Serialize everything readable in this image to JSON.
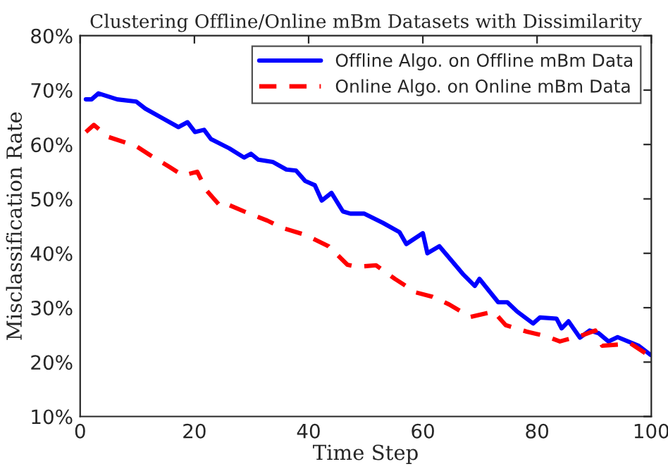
{
  "chart_data": {
    "type": "line",
    "title": "Clustering Offline/Online mBm Datasets with Dissimilarity",
    "xlabel": "Time Step",
    "ylabel": "Misclassification Rate",
    "xlim": [
      0,
      100
    ],
    "xticks": [
      0,
      20,
      40,
      60,
      80,
      100
    ],
    "ylim": [
      10,
      80
    ],
    "yticks": [
      {
        "value": 10,
        "label": "10%"
      },
      {
        "value": 20,
        "label": "20%"
      },
      {
        "value": 30,
        "label": "30%"
      },
      {
        "value": 40,
        "label": "40%"
      },
      {
        "value": 50,
        "label": "50%"
      },
      {
        "value": 60,
        "label": "60%"
      },
      {
        "value": 70,
        "label": "70%"
      },
      {
        "value": 80,
        "label": "80%"
      }
    ],
    "grid": false,
    "legend": "top right",
    "series": [
      {
        "name": "Offline Algo. on Offline mBm Data",
        "color": "#0000ff",
        "line_style": "solid",
        "x": [
          1,
          2,
          3.2,
          6.5,
          9.8,
          11.4,
          14.3,
          17.2,
          18.8,
          20.1,
          21.7,
          22.9,
          26.1,
          28.7,
          29.9,
          31.2,
          33.7,
          36.1,
          37.8,
          39.4,
          41.1,
          42.3,
          44,
          46,
          47.3,
          49.7,
          53,
          55.9,
          57.1,
          60,
          60.8,
          62.9,
          67,
          69.1,
          69.9,
          73.2,
          74.8,
          76.5,
          79.3,
          80.5,
          83.4,
          84.3,
          85.5,
          87.5,
          89.2,
          90.8,
          92.5,
          94.1,
          97.8,
          99.9
        ],
        "values": [
          68.3,
          68.3,
          69.4,
          68.3,
          67.9,
          66.6,
          64.9,
          63.2,
          64.1,
          62.3,
          62.7,
          61,
          59.3,
          57.6,
          58.3,
          57.2,
          56.8,
          55.4,
          55.2,
          53.3,
          52.5,
          49.7,
          51.1,
          47.7,
          47.3,
          47.3,
          45.6,
          43.9,
          41.7,
          43.7,
          40,
          41.3,
          36.2,
          34,
          35.3,
          31,
          31,
          29.3,
          27.1,
          28.2,
          28,
          26.2,
          27.5,
          24.5,
          25.8,
          25.3,
          23.8,
          24.6,
          23,
          21.3
        ]
      },
      {
        "name": "Online Algo. on Online mBm Data",
        "color": "#ff0000",
        "line_style": "dashed",
        "x": [
          1,
          2.4,
          4.9,
          9.8,
          12.3,
          15.6,
          18,
          20.5,
          22.1,
          24.6,
          25.8,
          28.7,
          32.8,
          35.3,
          39.4,
          43.5,
          46.8,
          48.5,
          51.8,
          55.1,
          58.8,
          61.7,
          64.6,
          68.3,
          72.4,
          74.5,
          78.2,
          81.5,
          84,
          88.1,
          90.2,
          91.4,
          96.4,
          99.9
        ],
        "values": [
          62.3,
          63.6,
          61.4,
          59.7,
          58,
          55.9,
          54.3,
          55,
          51.6,
          48.6,
          49,
          47.7,
          46,
          44.7,
          43.4,
          41.3,
          37.9,
          37.5,
          37.8,
          35.3,
          32.8,
          32,
          30.6,
          28.3,
          29.3,
          26.8,
          25.6,
          24.8,
          23.8,
          25,
          25.8,
          23,
          23.4,
          21
        ]
      }
    ]
  }
}
